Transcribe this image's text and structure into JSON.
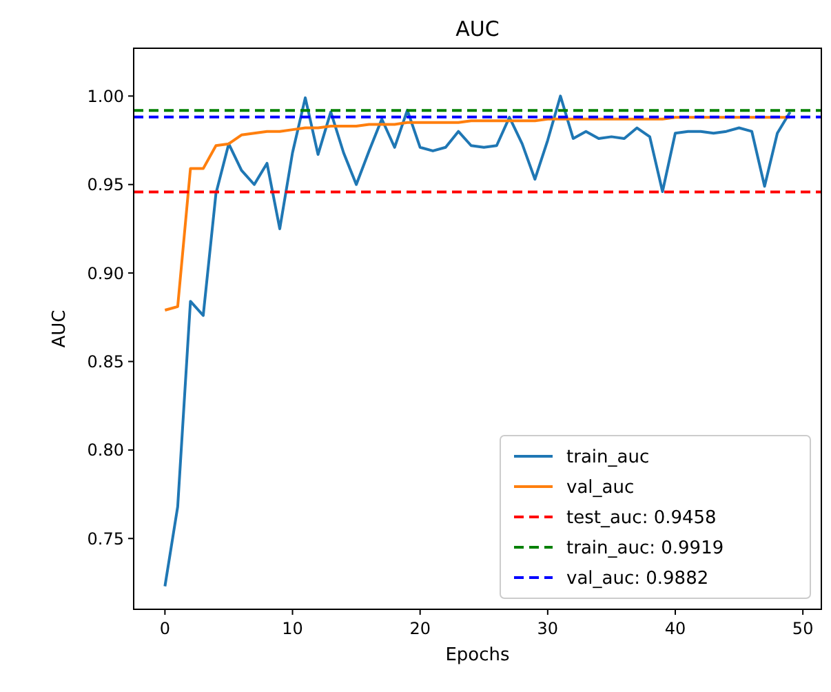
{
  "chart_data": {
    "type": "line",
    "title": "AUC",
    "xlabel": "Epochs",
    "ylabel": "AUC",
    "x": [
      0,
      1,
      2,
      3,
      4,
      5,
      6,
      7,
      8,
      9,
      10,
      11,
      12,
      13,
      14,
      15,
      16,
      17,
      18,
      19,
      20,
      21,
      22,
      23,
      24,
      25,
      26,
      27,
      28,
      29,
      30,
      31,
      32,
      33,
      34,
      35,
      36,
      37,
      38,
      39,
      40,
      41,
      42,
      43,
      44,
      45,
      46,
      47,
      48,
      49
    ],
    "series": [
      {
        "name": "train_auc",
        "color": "#1f77b4",
        "values": [
          0.723,
          0.768,
          0.884,
          0.876,
          0.945,
          0.973,
          0.958,
          0.95,
          0.962,
          0.925,
          0.968,
          0.999,
          0.967,
          0.991,
          0.968,
          0.95,
          0.969,
          0.987,
          0.971,
          0.992,
          0.971,
          0.969,
          0.971,
          0.98,
          0.972,
          0.971,
          0.972,
          0.988,
          0.973,
          0.953,
          0.975,
          1.0,
          0.976,
          0.98,
          0.976,
          0.977,
          0.976,
          0.982,
          0.977,
          0.946,
          0.979,
          0.98,
          0.98,
          0.979,
          0.98,
          0.982,
          0.98,
          0.949,
          0.979,
          0.991
        ]
      },
      {
        "name": "val_auc",
        "color": "#ff7f0e",
        "values": [
          0.879,
          0.881,
          0.959,
          0.959,
          0.972,
          0.973,
          0.978,
          0.979,
          0.98,
          0.98,
          0.981,
          0.982,
          0.982,
          0.983,
          0.983,
          0.983,
          0.984,
          0.984,
          0.984,
          0.985,
          0.985,
          0.985,
          0.985,
          0.985,
          0.986,
          0.986,
          0.986,
          0.986,
          0.986,
          0.986,
          0.987,
          0.987,
          0.987,
          0.987,
          0.987,
          0.987,
          0.987,
          0.987,
          0.987,
          0.987,
          0.988,
          0.988,
          0.988,
          0.988,
          0.988,
          0.988,
          0.988,
          0.988,
          0.988,
          0.988
        ]
      }
    ],
    "ref_lines": [
      {
        "axis": "y",
        "value": 0.9458,
        "label": "test_auc: 0.9458",
        "color": "#ff0000",
        "line_style": "dashed"
      },
      {
        "axis": "y",
        "value": 0.9919,
        "label": "train_auc: 0.9919",
        "color": "#008000",
        "line_style": "dashed"
      },
      {
        "axis": "y",
        "value": 0.9882,
        "label": "val_auc: 0.9882",
        "color": "#0000ff",
        "line_style": "dashed"
      }
    ],
    "xlim": [
      -2.45,
      51.45
    ],
    "xticks": [
      0,
      10,
      20,
      30,
      40,
      50
    ],
    "ylim": [
      0.71,
      1.027
    ],
    "yticks": [
      {
        "value": 0.75,
        "label": "0.75"
      },
      {
        "value": 0.8,
        "label": "0.80"
      },
      {
        "value": 0.85,
        "label": "0.85"
      },
      {
        "value": 0.9,
        "label": "0.90"
      },
      {
        "value": 0.95,
        "label": "0.95"
      },
      {
        "value": 1,
        "label": "1.00"
      }
    ],
    "legend": "bottom right",
    "grid": false,
    "marker": "none",
    "line_style": "solid"
  }
}
